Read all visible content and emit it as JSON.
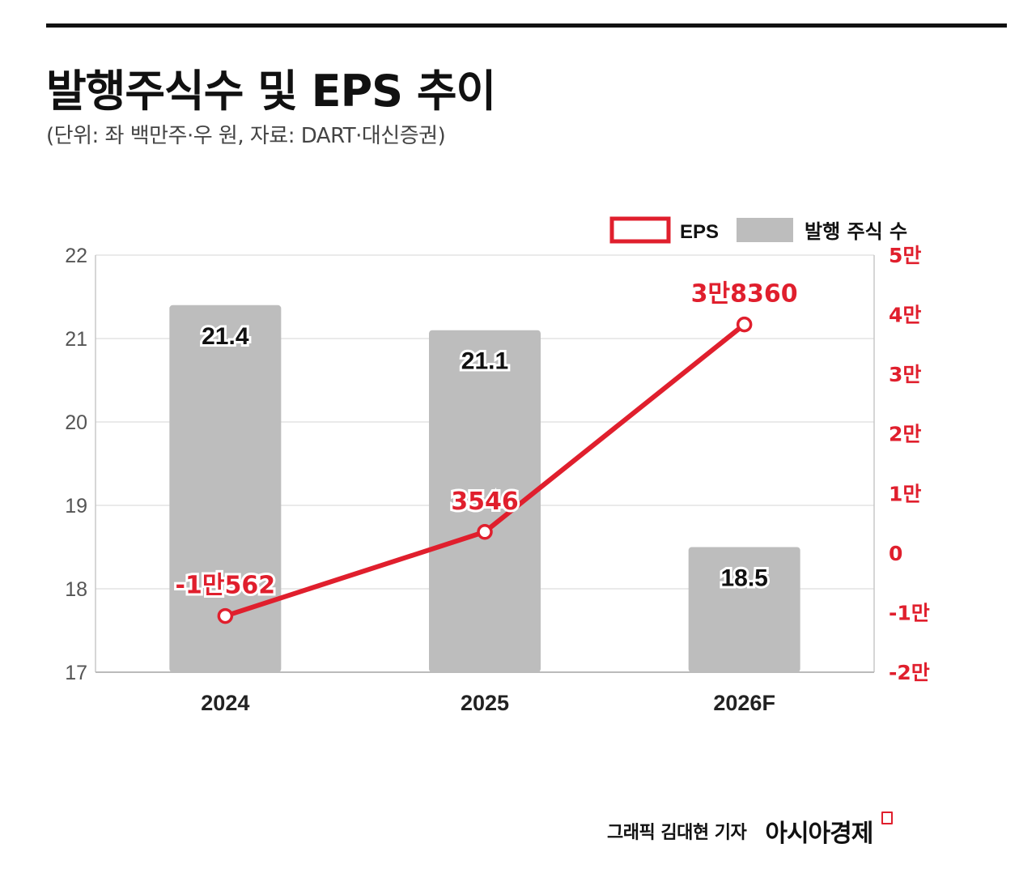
{
  "header": {
    "title": "발행주식수 및 EPS 추이",
    "subtitle": "(단위: 좌 백만주·우 원, 자료: DART·대신증권)"
  },
  "legend": {
    "eps_label": "EPS",
    "shares_label": "발행 주식 수"
  },
  "footer": {
    "credit": "그래픽  김대현 기자",
    "brand": "아시아경제"
  },
  "colors": {
    "eps": "#e01f2d",
    "bars": "#bdbdbd",
    "grid": "#e3e3e3",
    "axis_left_text": "#555555",
    "axis_right_text": "#e01f2d"
  },
  "chart_data": {
    "type": "bar",
    "categories": [
      "2024",
      "2025",
      "2026F"
    ],
    "series": [
      {
        "name": "발행 주식 수",
        "type": "bar",
        "axis": "left",
        "values": [
          21.4,
          21.1,
          18.5
        ],
        "labels": [
          "21.4",
          "21.1",
          "18.5"
        ]
      },
      {
        "name": "EPS",
        "type": "line",
        "axis": "right",
        "values": [
          -10562,
          3546,
          38360
        ],
        "labels": [
          "-1만562",
          "3546",
          "3만8360"
        ]
      }
    ],
    "left_axis": {
      "ylim": [
        17,
        22
      ],
      "ticks": [
        17,
        18,
        19,
        20,
        21,
        22
      ],
      "tick_labels": [
        "17",
        "18",
        "19",
        "20",
        "21",
        "22"
      ]
    },
    "right_axis": {
      "ylim": [
        -20000,
        50000
      ],
      "ticks": [
        -20000,
        -10000,
        0,
        10000,
        20000,
        30000,
        40000,
        50000
      ],
      "tick_labels": [
        "-2만",
        "-1만",
        "0",
        "1만",
        "2만",
        "3만",
        "4만",
        "5만"
      ]
    },
    "grid": true,
    "legend_position": "top-right"
  }
}
